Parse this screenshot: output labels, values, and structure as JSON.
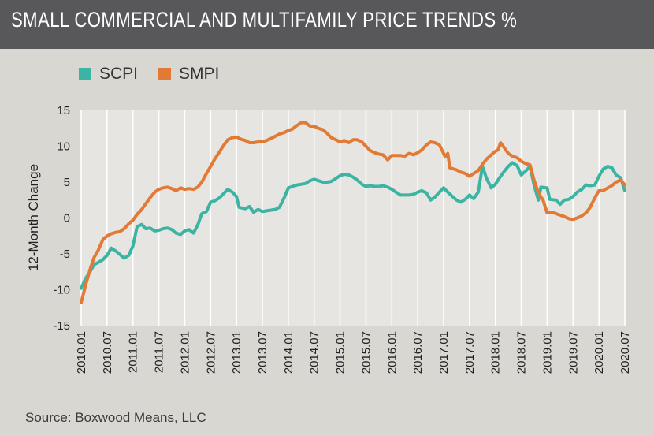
{
  "title": "SMALL COMMERCIAL AND MULTIFAMILY PRICE TRENDS %",
  "source": "Source: Boxwood Means, LLC",
  "colors": {
    "scpi": "#3cb4a3",
    "smpi": "#e27a35",
    "header_bg": "#58585a",
    "page_bg": "#d8d7d2"
  },
  "chart_data": {
    "type": "line",
    "ylabel": "12-Month Change",
    "ylim": [
      -15,
      15
    ],
    "yticks": [
      15,
      10,
      5,
      0,
      -5,
      -10,
      -15
    ],
    "xlim": [
      2010.0,
      2020.5
    ],
    "xticks": [
      "2010.01",
      "2010.07",
      "2011.01",
      "2011.07",
      "2012.01",
      "2012.07",
      "2013.01",
      "2013.07",
      "2014.01",
      "2014.07",
      "2015.01",
      "2015.07",
      "2016.01",
      "2016.07",
      "2017.01",
      "2017.07",
      "2018.01",
      "2018.07",
      "2019.01",
      "2019.07",
      "2020.01",
      "2020.07"
    ],
    "legend_position": "top-left",
    "grid": "vertical",
    "series": [
      {
        "name": "SCPI",
        "color": "#3cb4a3",
        "points": [
          [
            2010.0,
            -9.8
          ],
          [
            2010.08,
            -8.5
          ],
          [
            2010.17,
            -7.5
          ],
          [
            2010.25,
            -6.5
          ],
          [
            2010.33,
            -6.2
          ],
          [
            2010.42,
            -5.8
          ],
          [
            2010.5,
            -5.2
          ],
          [
            2010.58,
            -4.2
          ],
          [
            2010.67,
            -4.6
          ],
          [
            2010.75,
            -5.1
          ],
          [
            2010.83,
            -5.6
          ],
          [
            2010.92,
            -5.2
          ],
          [
            2011.0,
            -3.9
          ],
          [
            2011.08,
            -1.2
          ],
          [
            2011.17,
            -0.9
          ],
          [
            2011.25,
            -1.5
          ],
          [
            2011.33,
            -1.4
          ],
          [
            2011.42,
            -1.8
          ],
          [
            2011.5,
            -1.7
          ],
          [
            2011.58,
            -1.5
          ],
          [
            2011.67,
            -1.4
          ],
          [
            2011.75,
            -1.6
          ],
          [
            2011.83,
            -2.1
          ],
          [
            2011.92,
            -2.3
          ],
          [
            2012.0,
            -1.8
          ],
          [
            2012.08,
            -1.6
          ],
          [
            2012.17,
            -2.1
          ],
          [
            2012.25,
            -1.0
          ],
          [
            2012.33,
            0.6
          ],
          [
            2012.42,
            0.9
          ],
          [
            2012.5,
            2.2
          ],
          [
            2012.58,
            2.4
          ],
          [
            2012.67,
            2.8
          ],
          [
            2012.75,
            3.4
          ],
          [
            2012.83,
            4.0
          ],
          [
            2012.92,
            3.6
          ],
          [
            2013.0,
            3.0
          ],
          [
            2013.05,
            1.5
          ],
          [
            2013.17,
            1.3
          ],
          [
            2013.25,
            1.6
          ],
          [
            2013.33,
            0.8
          ],
          [
            2013.42,
            1.2
          ],
          [
            2013.5,
            0.9
          ],
          [
            2013.58,
            1.0
          ],
          [
            2013.67,
            1.1
          ],
          [
            2013.75,
            1.2
          ],
          [
            2013.83,
            1.5
          ],
          [
            2013.92,
            2.8
          ],
          [
            2014.0,
            4.2
          ],
          [
            2014.08,
            4.4
          ],
          [
            2014.17,
            4.6
          ],
          [
            2014.25,
            4.7
          ],
          [
            2014.33,
            4.8
          ],
          [
            2014.42,
            5.2
          ],
          [
            2014.5,
            5.4
          ],
          [
            2014.58,
            5.2
          ],
          [
            2014.67,
            5.0
          ],
          [
            2014.75,
            5.0
          ],
          [
            2014.83,
            5.1
          ],
          [
            2014.92,
            5.5
          ],
          [
            2015.0,
            5.9
          ],
          [
            2015.08,
            6.1
          ],
          [
            2015.17,
            6.0
          ],
          [
            2015.25,
            5.7
          ],
          [
            2015.33,
            5.3
          ],
          [
            2015.42,
            4.7
          ],
          [
            2015.5,
            4.4
          ],
          [
            2015.58,
            4.5
          ],
          [
            2015.67,
            4.4
          ],
          [
            2015.75,
            4.4
          ],
          [
            2015.83,
            4.5
          ],
          [
            2015.92,
            4.3
          ],
          [
            2016.0,
            4.0
          ],
          [
            2016.08,
            3.6
          ],
          [
            2016.17,
            3.2
          ],
          [
            2016.25,
            3.2
          ],
          [
            2016.33,
            3.2
          ],
          [
            2016.42,
            3.3
          ],
          [
            2016.5,
            3.6
          ],
          [
            2016.58,
            3.8
          ],
          [
            2016.67,
            3.5
          ],
          [
            2016.75,
            2.5
          ],
          [
            2016.83,
            2.9
          ],
          [
            2016.92,
            3.6
          ],
          [
            2017.0,
            4.2
          ],
          [
            2017.08,
            3.6
          ],
          [
            2017.17,
            3.0
          ],
          [
            2017.25,
            2.5
          ],
          [
            2017.33,
            2.2
          ],
          [
            2017.42,
            2.6
          ],
          [
            2017.5,
            3.2
          ],
          [
            2017.58,
            2.7
          ],
          [
            2017.67,
            3.6
          ],
          [
            2017.75,
            7.2
          ],
          [
            2017.83,
            5.5
          ],
          [
            2017.92,
            4.2
          ],
          [
            2018.0,
            4.7
          ],
          [
            2018.08,
            5.6
          ],
          [
            2018.17,
            6.5
          ],
          [
            2018.25,
            7.2
          ],
          [
            2018.33,
            7.7
          ],
          [
            2018.42,
            7.3
          ],
          [
            2018.5,
            6.0
          ],
          [
            2018.58,
            6.5
          ],
          [
            2018.67,
            7.2
          ],
          [
            2018.75,
            4.5
          ],
          [
            2018.83,
            2.5
          ],
          [
            2018.88,
            4.3
          ],
          [
            2019.0,
            4.2
          ],
          [
            2019.05,
            2.6
          ],
          [
            2019.17,
            2.5
          ],
          [
            2019.25,
            1.9
          ],
          [
            2019.33,
            2.5
          ],
          [
            2019.42,
            2.6
          ],
          [
            2019.5,
            3.0
          ],
          [
            2019.58,
            3.6
          ],
          [
            2019.67,
            4.0
          ],
          [
            2019.75,
            4.6
          ],
          [
            2019.83,
            4.5
          ],
          [
            2019.92,
            4.6
          ],
          [
            2020.0,
            5.8
          ],
          [
            2020.08,
            6.8
          ],
          [
            2020.17,
            7.2
          ],
          [
            2020.25,
            7.0
          ],
          [
            2020.33,
            6.0
          ],
          [
            2020.42,
            5.6
          ],
          [
            2020.5,
            3.8
          ]
        ]
      },
      {
        "name": "SMPI",
        "color": "#e27a35",
        "points": [
          [
            2010.0,
            -11.8
          ],
          [
            2010.08,
            -9.5
          ],
          [
            2010.17,
            -7.2
          ],
          [
            2010.25,
            -5.5
          ],
          [
            2010.33,
            -4.5
          ],
          [
            2010.42,
            -3.0
          ],
          [
            2010.5,
            -2.5
          ],
          [
            2010.58,
            -2.2
          ],
          [
            2010.67,
            -2.0
          ],
          [
            2010.75,
            -1.9
          ],
          [
            2010.83,
            -1.5
          ],
          [
            2010.92,
            -0.8
          ],
          [
            2011.0,
            -0.3
          ],
          [
            2011.08,
            0.5
          ],
          [
            2011.17,
            1.2
          ],
          [
            2011.25,
            2.0
          ],
          [
            2011.33,
            2.8
          ],
          [
            2011.42,
            3.6
          ],
          [
            2011.5,
            4.0
          ],
          [
            2011.58,
            4.2
          ],
          [
            2011.67,
            4.3
          ],
          [
            2011.75,
            4.1
          ],
          [
            2011.83,
            3.8
          ],
          [
            2011.92,
            4.2
          ],
          [
            2012.0,
            4.0
          ],
          [
            2012.08,
            4.1
          ],
          [
            2012.17,
            4.0
          ],
          [
            2012.25,
            4.3
          ],
          [
            2012.33,
            5.0
          ],
          [
            2012.42,
            6.2
          ],
          [
            2012.5,
            7.2
          ],
          [
            2012.58,
            8.2
          ],
          [
            2012.67,
            9.2
          ],
          [
            2012.75,
            10.1
          ],
          [
            2012.83,
            10.9
          ],
          [
            2012.92,
            11.2
          ],
          [
            2013.0,
            11.3
          ],
          [
            2013.08,
            11.0
          ],
          [
            2013.17,
            10.8
          ],
          [
            2013.25,
            10.5
          ],
          [
            2013.33,
            10.5
          ],
          [
            2013.42,
            10.6
          ],
          [
            2013.5,
            10.6
          ],
          [
            2013.58,
            10.8
          ],
          [
            2013.67,
            11.1
          ],
          [
            2013.75,
            11.4
          ],
          [
            2013.83,
            11.7
          ],
          [
            2013.92,
            11.9
          ],
          [
            2014.0,
            12.2
          ],
          [
            2014.08,
            12.4
          ],
          [
            2014.17,
            12.9
          ],
          [
            2014.25,
            13.3
          ],
          [
            2014.33,
            13.3
          ],
          [
            2014.42,
            12.8
          ],
          [
            2014.5,
            12.8
          ],
          [
            2014.58,
            12.5
          ],
          [
            2014.67,
            12.3
          ],
          [
            2014.75,
            11.8
          ],
          [
            2014.83,
            11.2
          ],
          [
            2014.92,
            10.9
          ],
          [
            2015.0,
            10.6
          ],
          [
            2015.08,
            10.8
          ],
          [
            2015.17,
            10.5
          ],
          [
            2015.25,
            10.9
          ],
          [
            2015.33,
            10.9
          ],
          [
            2015.42,
            10.6
          ],
          [
            2015.5,
            10.0
          ],
          [
            2015.58,
            9.4
          ],
          [
            2015.67,
            9.1
          ],
          [
            2015.75,
            8.9
          ],
          [
            2015.83,
            8.8
          ],
          [
            2015.92,
            8.1
          ],
          [
            2016.0,
            8.7
          ],
          [
            2016.08,
            8.7
          ],
          [
            2016.17,
            8.7
          ],
          [
            2016.25,
            8.6
          ],
          [
            2016.33,
            9.0
          ],
          [
            2016.42,
            8.8
          ],
          [
            2016.5,
            9.1
          ],
          [
            2016.58,
            9.5
          ],
          [
            2016.67,
            10.2
          ],
          [
            2016.75,
            10.6
          ],
          [
            2016.83,
            10.5
          ],
          [
            2016.92,
            10.2
          ],
          [
            2017.0,
            9.0
          ],
          [
            2017.03,
            8.5
          ],
          [
            2017.08,
            9.0
          ],
          [
            2017.12,
            7.0
          ],
          [
            2017.25,
            6.7
          ],
          [
            2017.33,
            6.4
          ],
          [
            2017.42,
            6.2
          ],
          [
            2017.5,
            5.8
          ],
          [
            2017.58,
            6.2
          ],
          [
            2017.67,
            6.6
          ],
          [
            2017.75,
            7.5
          ],
          [
            2017.83,
            8.2
          ],
          [
            2017.92,
            8.8
          ],
          [
            2018.0,
            9.3
          ],
          [
            2018.05,
            9.5
          ],
          [
            2018.1,
            10.5
          ],
          [
            2018.17,
            9.8
          ],
          [
            2018.25,
            9.0
          ],
          [
            2018.33,
            8.6
          ],
          [
            2018.42,
            8.4
          ],
          [
            2018.5,
            7.9
          ],
          [
            2018.58,
            7.6
          ],
          [
            2018.67,
            7.4
          ],
          [
            2018.75,
            5.2
          ],
          [
            2018.83,
            3.5
          ],
          [
            2018.92,
            2.5
          ],
          [
            2019.0,
            0.7
          ],
          [
            2019.08,
            0.8
          ],
          [
            2019.17,
            0.6
          ],
          [
            2019.25,
            0.4
          ],
          [
            2019.33,
            0.2
          ],
          [
            2019.42,
            -0.1
          ],
          [
            2019.5,
            -0.2
          ],
          [
            2019.58,
            0.0
          ],
          [
            2019.67,
            0.3
          ],
          [
            2019.75,
            0.7
          ],
          [
            2019.83,
            1.5
          ],
          [
            2019.92,
            2.8
          ],
          [
            2020.0,
            3.8
          ],
          [
            2020.08,
            3.8
          ],
          [
            2020.17,
            4.2
          ],
          [
            2020.25,
            4.5
          ],
          [
            2020.33,
            5.0
          ],
          [
            2020.42,
            5.3
          ],
          [
            2020.5,
            4.6
          ]
        ]
      }
    ]
  }
}
